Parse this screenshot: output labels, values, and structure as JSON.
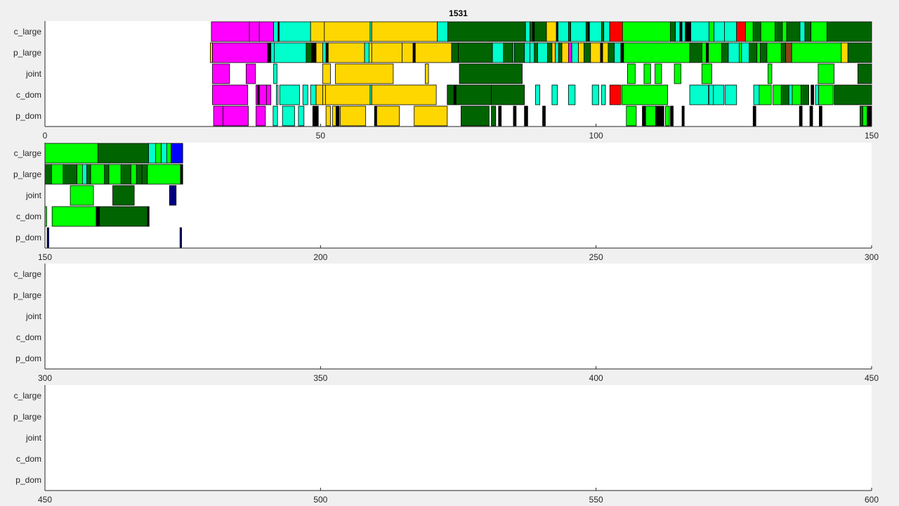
{
  "chart_data": {
    "type": "timeline",
    "title": "1531",
    "row_labels": [
      "c_large",
      "p_large",
      "joint",
      "c_dom",
      "p_dom"
    ],
    "panels": [
      {
        "xlim": [
          0,
          150
        ],
        "ticks": [
          0,
          50,
          100,
          150
        ]
      },
      {
        "xlim": [
          150,
          300
        ],
        "ticks": [
          150,
          200,
          250,
          300
        ]
      },
      {
        "xlim": [
          300,
          450
        ],
        "ticks": [
          300,
          350,
          400,
          450
        ]
      },
      {
        "xlim": [
          450,
          600
        ],
        "ticks": [
          450,
          500,
          550,
          600
        ]
      }
    ],
    "colors": {
      "magenta": "#ff00ff",
      "aqua": "#00ffcc",
      "gold": "#ffd700",
      "darkgreen": "#006400",
      "lime": "#00ff00",
      "red": "#ff0000",
      "blue": "#0000ff",
      "navy": "#000080",
      "brown": "#8b4513",
      "black": "#000000"
    },
    "segments": {
      "c_large": [
        [
          30.2,
          37.1,
          "magenta"
        ],
        [
          37.1,
          38.9,
          "magenta"
        ],
        [
          38.9,
          41.5,
          "magenta"
        ],
        [
          41.5,
          42.3,
          "aqua"
        ],
        [
          42.3,
          42.5,
          "black"
        ],
        [
          42.5,
          48.2,
          "aqua"
        ],
        [
          48.2,
          50.7,
          "gold"
        ],
        [
          50.7,
          59.0,
          "gold"
        ],
        [
          59.0,
          59.3,
          "aqua"
        ],
        [
          59.3,
          71.2,
          "gold"
        ],
        [
          71.2,
          73.1,
          "aqua"
        ],
        [
          73.1,
          87.2,
          "darkgreen"
        ],
        [
          87.2,
          88.0,
          "aqua"
        ],
        [
          88.0,
          88.5,
          "darkgreen"
        ],
        [
          88.5,
          88.8,
          "black"
        ],
        [
          88.8,
          91.0,
          "darkgreen"
        ],
        [
          91.0,
          92.8,
          "gold"
        ],
        [
          92.8,
          93.1,
          "black"
        ],
        [
          93.1,
          95.0,
          "aqua"
        ],
        [
          95.0,
          95.4,
          "darkgreen"
        ],
        [
          95.4,
          98.2,
          "aqua"
        ],
        [
          98.2,
          98.5,
          "darkgreen"
        ],
        [
          98.5,
          98.8,
          "black"
        ],
        [
          98.8,
          101.0,
          "aqua"
        ],
        [
          101.0,
          101.4,
          "darkgreen"
        ],
        [
          101.4,
          102.5,
          "aqua"
        ],
        [
          102.5,
          104.8,
          "red"
        ],
        [
          104.8,
          113.5,
          "lime"
        ],
        [
          113.5,
          114.4,
          "darkgreen"
        ],
        [
          114.4,
          115.2,
          "aqua"
        ],
        [
          115.2,
          115.6,
          "black"
        ],
        [
          115.6,
          116.2,
          "aqua"
        ],
        [
          116.2,
          117.2,
          "black"
        ],
        [
          117.2,
          120.5,
          "aqua"
        ],
        [
          120.5,
          121.4,
          "lime"
        ],
        [
          121.4,
          123.3,
          "aqua"
        ],
        [
          123.3,
          125.5,
          "aqua"
        ],
        [
          125.5,
          127.1,
          "red"
        ],
        [
          127.1,
          128.5,
          "lime"
        ],
        [
          128.5,
          129.9,
          "darkgreen"
        ],
        [
          129.9,
          132.5,
          "lime"
        ],
        [
          132.5,
          133.8,
          "darkgreen"
        ],
        [
          133.8,
          134.6,
          "lime"
        ],
        [
          134.6,
          137.0,
          "darkgreen"
        ],
        [
          137.0,
          137.9,
          "aqua"
        ],
        [
          137.9,
          139.0,
          "darkgreen"
        ],
        [
          139.0,
          141.9,
          "lime"
        ],
        [
          141.9,
          150,
          "darkgreen"
        ],
        [
          150,
          159.6,
          "lime"
        ],
        [
          159.6,
          168.8,
          "darkgreen"
        ],
        [
          168.8,
          170.1,
          "aqua"
        ],
        [
          170.1,
          171.1,
          "lime"
        ],
        [
          171.1,
          172.1,
          "aqua"
        ],
        [
          172.1,
          172.9,
          "lime"
        ],
        [
          172.9,
          175.0,
          "blue"
        ]
      ],
      "p_large": [
        [
          30.0,
          30.4,
          "gold"
        ],
        [
          30.4,
          40.4,
          "magenta"
        ],
        [
          40.4,
          41.0,
          "black"
        ],
        [
          41.0,
          41.6,
          "aqua"
        ],
        [
          41.6,
          47.4,
          "aqua"
        ],
        [
          47.4,
          48.4,
          "darkgreen"
        ],
        [
          48.4,
          49.2,
          "black"
        ],
        [
          49.2,
          50.4,
          "gold"
        ],
        [
          50.4,
          51.0,
          "aqua"
        ],
        [
          51.0,
          51.4,
          "black"
        ],
        [
          51.4,
          58.0,
          "gold"
        ],
        [
          58.0,
          58.8,
          "aqua"
        ],
        [
          58.8,
          59.3,
          "gold"
        ],
        [
          59.3,
          64.8,
          "gold"
        ],
        [
          64.8,
          66.8,
          "gold"
        ],
        [
          66.8,
          67.2,
          "black"
        ],
        [
          67.2,
          73.8,
          "gold"
        ],
        [
          73.8,
          75.0,
          "darkgreen"
        ],
        [
          75.0,
          81.2,
          "darkgreen"
        ],
        [
          81.2,
          83.2,
          "aqua"
        ],
        [
          83.2,
          84.9,
          "darkgreen"
        ],
        [
          84.9,
          85.2,
          "aqua"
        ],
        [
          85.2,
          87.0,
          "darkgreen"
        ],
        [
          87.0,
          88.0,
          "aqua"
        ],
        [
          88.0,
          88.8,
          "aqua"
        ],
        [
          88.8,
          89.4,
          "darkgreen"
        ],
        [
          89.4,
          91.2,
          "aqua"
        ],
        [
          91.2,
          92.0,
          "darkgreen"
        ],
        [
          92.0,
          92.6,
          "gold"
        ],
        [
          92.6,
          93.2,
          "aqua"
        ],
        [
          93.2,
          93.8,
          "darkgreen"
        ],
        [
          93.8,
          95.0,
          "gold"
        ],
        [
          95.0,
          95.6,
          "magenta"
        ],
        [
          95.6,
          96.8,
          "aqua"
        ],
        [
          96.8,
          97.8,
          "gold"
        ],
        [
          97.8,
          99.0,
          "darkgreen"
        ],
        [
          99.0,
          100.8,
          "gold"
        ],
        [
          100.8,
          101.2,
          "black"
        ],
        [
          101.2,
          102.2,
          "gold"
        ],
        [
          102.2,
          103.3,
          "darkgreen"
        ],
        [
          103.3,
          104.5,
          "aqua"
        ],
        [
          104.5,
          105.0,
          "black"
        ],
        [
          105.0,
          117.0,
          "lime"
        ],
        [
          117.0,
          119.2,
          "darkgreen"
        ],
        [
          119.2,
          120.0,
          "lime"
        ],
        [
          120.0,
          120.4,
          "black"
        ],
        [
          120.4,
          122.8,
          "lime"
        ],
        [
          122.8,
          124.0,
          "darkgreen"
        ],
        [
          124.0,
          126.0,
          "aqua"
        ],
        [
          126.0,
          126.4,
          "lime"
        ],
        [
          126.4,
          127.8,
          "aqua"
        ],
        [
          127.8,
          129.2,
          "darkgreen"
        ],
        [
          129.2,
          129.8,
          "lime"
        ],
        [
          129.8,
          131.0,
          "darkgreen"
        ],
        [
          131.0,
          133.6,
          "lime"
        ],
        [
          133.6,
          134.4,
          "darkgreen"
        ],
        [
          134.4,
          135.5,
          "brown"
        ],
        [
          135.5,
          144.5,
          "lime"
        ],
        [
          144.5,
          145.7,
          "gold"
        ],
        [
          145.7,
          150,
          "darkgreen"
        ],
        [
          150,
          151.2,
          "darkgreen"
        ],
        [
          151.2,
          153.3,
          "lime"
        ],
        [
          153.3,
          155.8,
          "darkgreen"
        ],
        [
          155.8,
          156.8,
          "lime"
        ],
        [
          156.8,
          157.6,
          "aqua"
        ],
        [
          157.6,
          158.3,
          "darkgreen"
        ],
        [
          158.3,
          160.8,
          "lime"
        ],
        [
          160.8,
          161.6,
          "darkgreen"
        ],
        [
          161.6,
          163.8,
          "lime"
        ],
        [
          163.8,
          165.6,
          "darkgreen"
        ],
        [
          165.6,
          166.6,
          "lime"
        ],
        [
          166.6,
          167.6,
          "darkgreen"
        ],
        [
          167.6,
          168.6,
          "darkgreen"
        ],
        [
          168.6,
          174.6,
          "lime"
        ],
        [
          174.6,
          175.0,
          "black"
        ]
      ],
      "joint": [
        [
          30.4,
          33.5,
          "magenta"
        ],
        [
          36.5,
          38.2,
          "magenta"
        ],
        [
          41.5,
          42.1,
          "aqua"
        ],
        [
          50.4,
          51.8,
          "gold"
        ],
        [
          52.7,
          63.2,
          "gold"
        ],
        [
          69.0,
          69.6,
          "gold"
        ],
        [
          75.2,
          86.6,
          "darkgreen"
        ],
        [
          105.7,
          107.1,
          "lime"
        ],
        [
          108.7,
          109.9,
          "lime"
        ],
        [
          110.7,
          111.9,
          "lime"
        ],
        [
          114.2,
          115.4,
          "lime"
        ],
        [
          119.2,
          121.0,
          "lime"
        ],
        [
          131.2,
          131.9,
          "lime"
        ],
        [
          140.3,
          143.2,
          "lime"
        ],
        [
          147.5,
          150,
          "darkgreen"
        ],
        [
          154.6,
          158.8,
          "lime"
        ],
        [
          162.3,
          166.2,
          "darkgreen"
        ],
        [
          172.6,
          173.8,
          "navy"
        ]
      ],
      "c_dom": [
        [
          30.4,
          36.8,
          "magenta"
        ],
        [
          38.3,
          38.6,
          "magenta"
        ],
        [
          38.6,
          38.9,
          "black"
        ],
        [
          38.9,
          40.2,
          "magenta"
        ],
        [
          40.2,
          41.0,
          "magenta"
        ],
        [
          42.0,
          42.3,
          "aqua"
        ],
        [
          42.6,
          46.2,
          "aqua"
        ],
        [
          46.8,
          47.7,
          "aqua"
        ],
        [
          48.2,
          49.2,
          "aqua"
        ],
        [
          49.2,
          50.4,
          "gold"
        ],
        [
          50.4,
          50.9,
          "gold"
        ],
        [
          50.9,
          59.0,
          "gold"
        ],
        [
          59.0,
          59.3,
          "aqua"
        ],
        [
          59.3,
          71.0,
          "gold"
        ],
        [
          73.0,
          74.2,
          "darkgreen"
        ],
        [
          74.2,
          74.6,
          "black"
        ],
        [
          74.6,
          81.0,
          "darkgreen"
        ],
        [
          81.0,
          87.0,
          "darkgreen"
        ],
        [
          89.0,
          89.8,
          "aqua"
        ],
        [
          92.0,
          93.0,
          "aqua"
        ],
        [
          95.0,
          96.2,
          "aqua"
        ],
        [
          99.3,
          100.5,
          "aqua"
        ],
        [
          101.0,
          101.7,
          "aqua"
        ],
        [
          102.5,
          104.5,
          "red"
        ],
        [
          104.7,
          113.0,
          "lime"
        ],
        [
          117.0,
          120.4,
          "aqua"
        ],
        [
          120.5,
          121.3,
          "aqua"
        ],
        [
          121.3,
          123.2,
          "aqua"
        ],
        [
          123.4,
          125.5,
          "aqua"
        ],
        [
          128.6,
          129.6,
          "aqua"
        ],
        [
          129.6,
          131.8,
          "lime"
        ],
        [
          132.1,
          133.6,
          "lime"
        ],
        [
          133.6,
          135.0,
          "darkgreen"
        ],
        [
          135.0,
          135.6,
          "aqua"
        ],
        [
          135.6,
          137.2,
          "lime"
        ],
        [
          137.2,
          138.6,
          "darkgreen"
        ],
        [
          139.0,
          139.5,
          "black"
        ],
        [
          139.8,
          140.4,
          "aqua"
        ],
        [
          140.4,
          143.0,
          "lime"
        ],
        [
          143.2,
          150,
          "darkgreen"
        ],
        [
          150,
          150.3,
          "lime"
        ],
        [
          151.3,
          159.3,
          "lime"
        ],
        [
          159.3,
          159.9,
          "black"
        ],
        [
          159.9,
          168.6,
          "darkgreen"
        ],
        [
          168.6,
          168.9,
          "black"
        ]
      ],
      "p_dom": [
        [
          30.6,
          32.3,
          "magenta"
        ],
        [
          32.3,
          36.9,
          "magenta"
        ],
        [
          38.3,
          40.0,
          "magenta"
        ],
        [
          41.4,
          42.2,
          "aqua"
        ],
        [
          43.1,
          45.3,
          "aqua"
        ],
        [
          46.0,
          47.0,
          "aqua"
        ],
        [
          48.6,
          49.6,
          "black"
        ],
        [
          51.0,
          51.8,
          "gold"
        ],
        [
          52.2,
          52.8,
          "gold"
        ],
        [
          52.9,
          53.4,
          "black"
        ],
        [
          53.6,
          58.2,
          "gold"
        ],
        [
          59.8,
          60.2,
          "black"
        ],
        [
          60.2,
          64.3,
          "gold"
        ],
        [
          67.0,
          73.0,
          "gold"
        ],
        [
          75.5,
          80.6,
          "darkgreen"
        ],
        [
          81.0,
          81.8,
          "darkgreen"
        ],
        [
          82.3,
          82.8,
          "black"
        ],
        [
          85.0,
          85.5,
          "black"
        ],
        [
          87.0,
          87.6,
          "black"
        ],
        [
          90.3,
          90.8,
          "black"
        ],
        [
          105.5,
          107.3,
          "lime"
        ],
        [
          108.4,
          108.9,
          "black"
        ],
        [
          109.0,
          110.8,
          "lime"
        ],
        [
          110.8,
          111.2,
          "black"
        ],
        [
          111.2,
          112.3,
          "black"
        ],
        [
          112.6,
          113.3,
          "lime"
        ],
        [
          113.5,
          114.0,
          "black"
        ],
        [
          115.6,
          116.0,
          "black"
        ],
        [
          128.5,
          129.0,
          "black"
        ],
        [
          136.9,
          137.4,
          "black"
        ],
        [
          138.8,
          139.3,
          "black"
        ],
        [
          140.5,
          141.0,
          "black"
        ],
        [
          147.9,
          148.4,
          "darkgreen"
        ],
        [
          148.4,
          149.2,
          "lime"
        ],
        [
          149.2,
          150,
          "black"
        ],
        [
          150.4,
          150.7,
          "navy"
        ],
        [
          174.5,
          174.8,
          "navy"
        ]
      ]
    }
  }
}
